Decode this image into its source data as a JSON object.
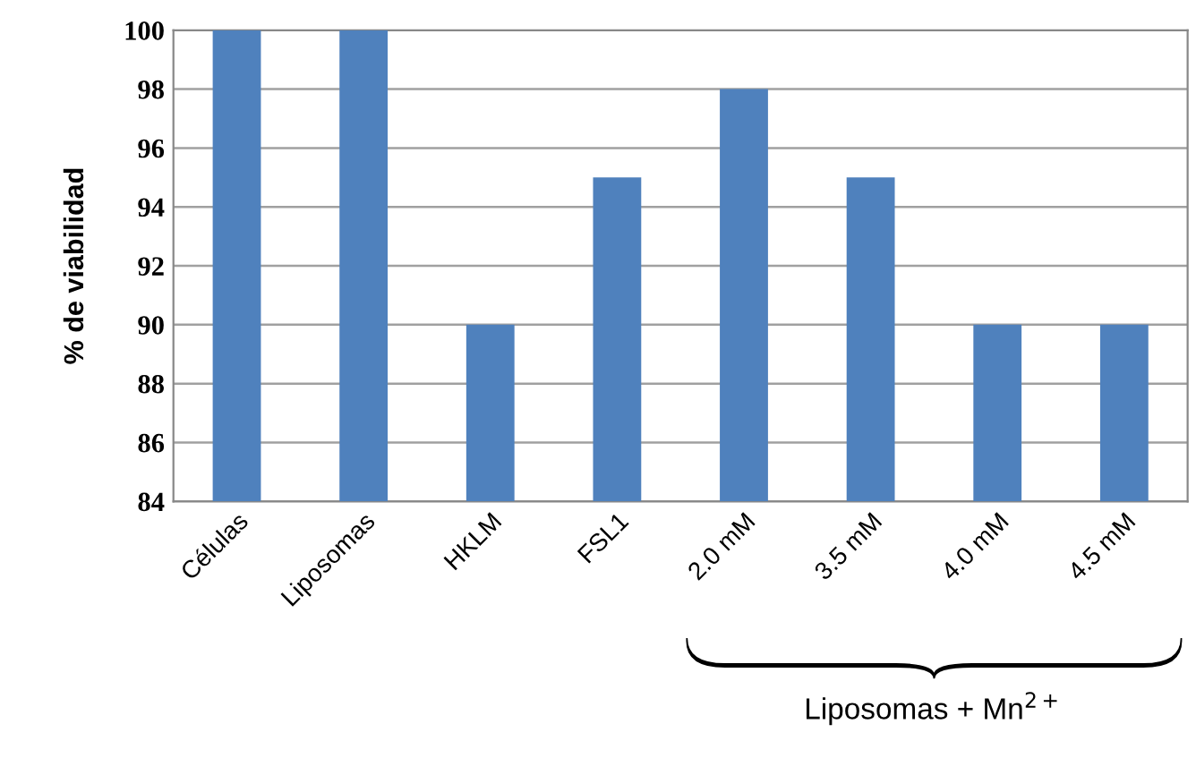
{
  "chart_data": {
    "type": "bar",
    "ylabel": "% de viabilidad",
    "categories": [
      "Células",
      "Liposomas",
      "HKLM",
      "FSL1",
      "2.0 mM",
      "3.5 mM",
      "4.0 mM",
      "4.5 mM"
    ],
    "values": [
      100,
      100,
      90,
      95,
      98,
      95,
      90,
      90
    ],
    "color": "#4f81bd",
    "ylim": [
      84,
      100
    ],
    "yticks": [
      84,
      86,
      88,
      90,
      92,
      94,
      96,
      98,
      100
    ],
    "grid": "y",
    "legend": false,
    "annotations": [
      "Liposomas + Mn$^{2+}$"
    ]
  }
}
